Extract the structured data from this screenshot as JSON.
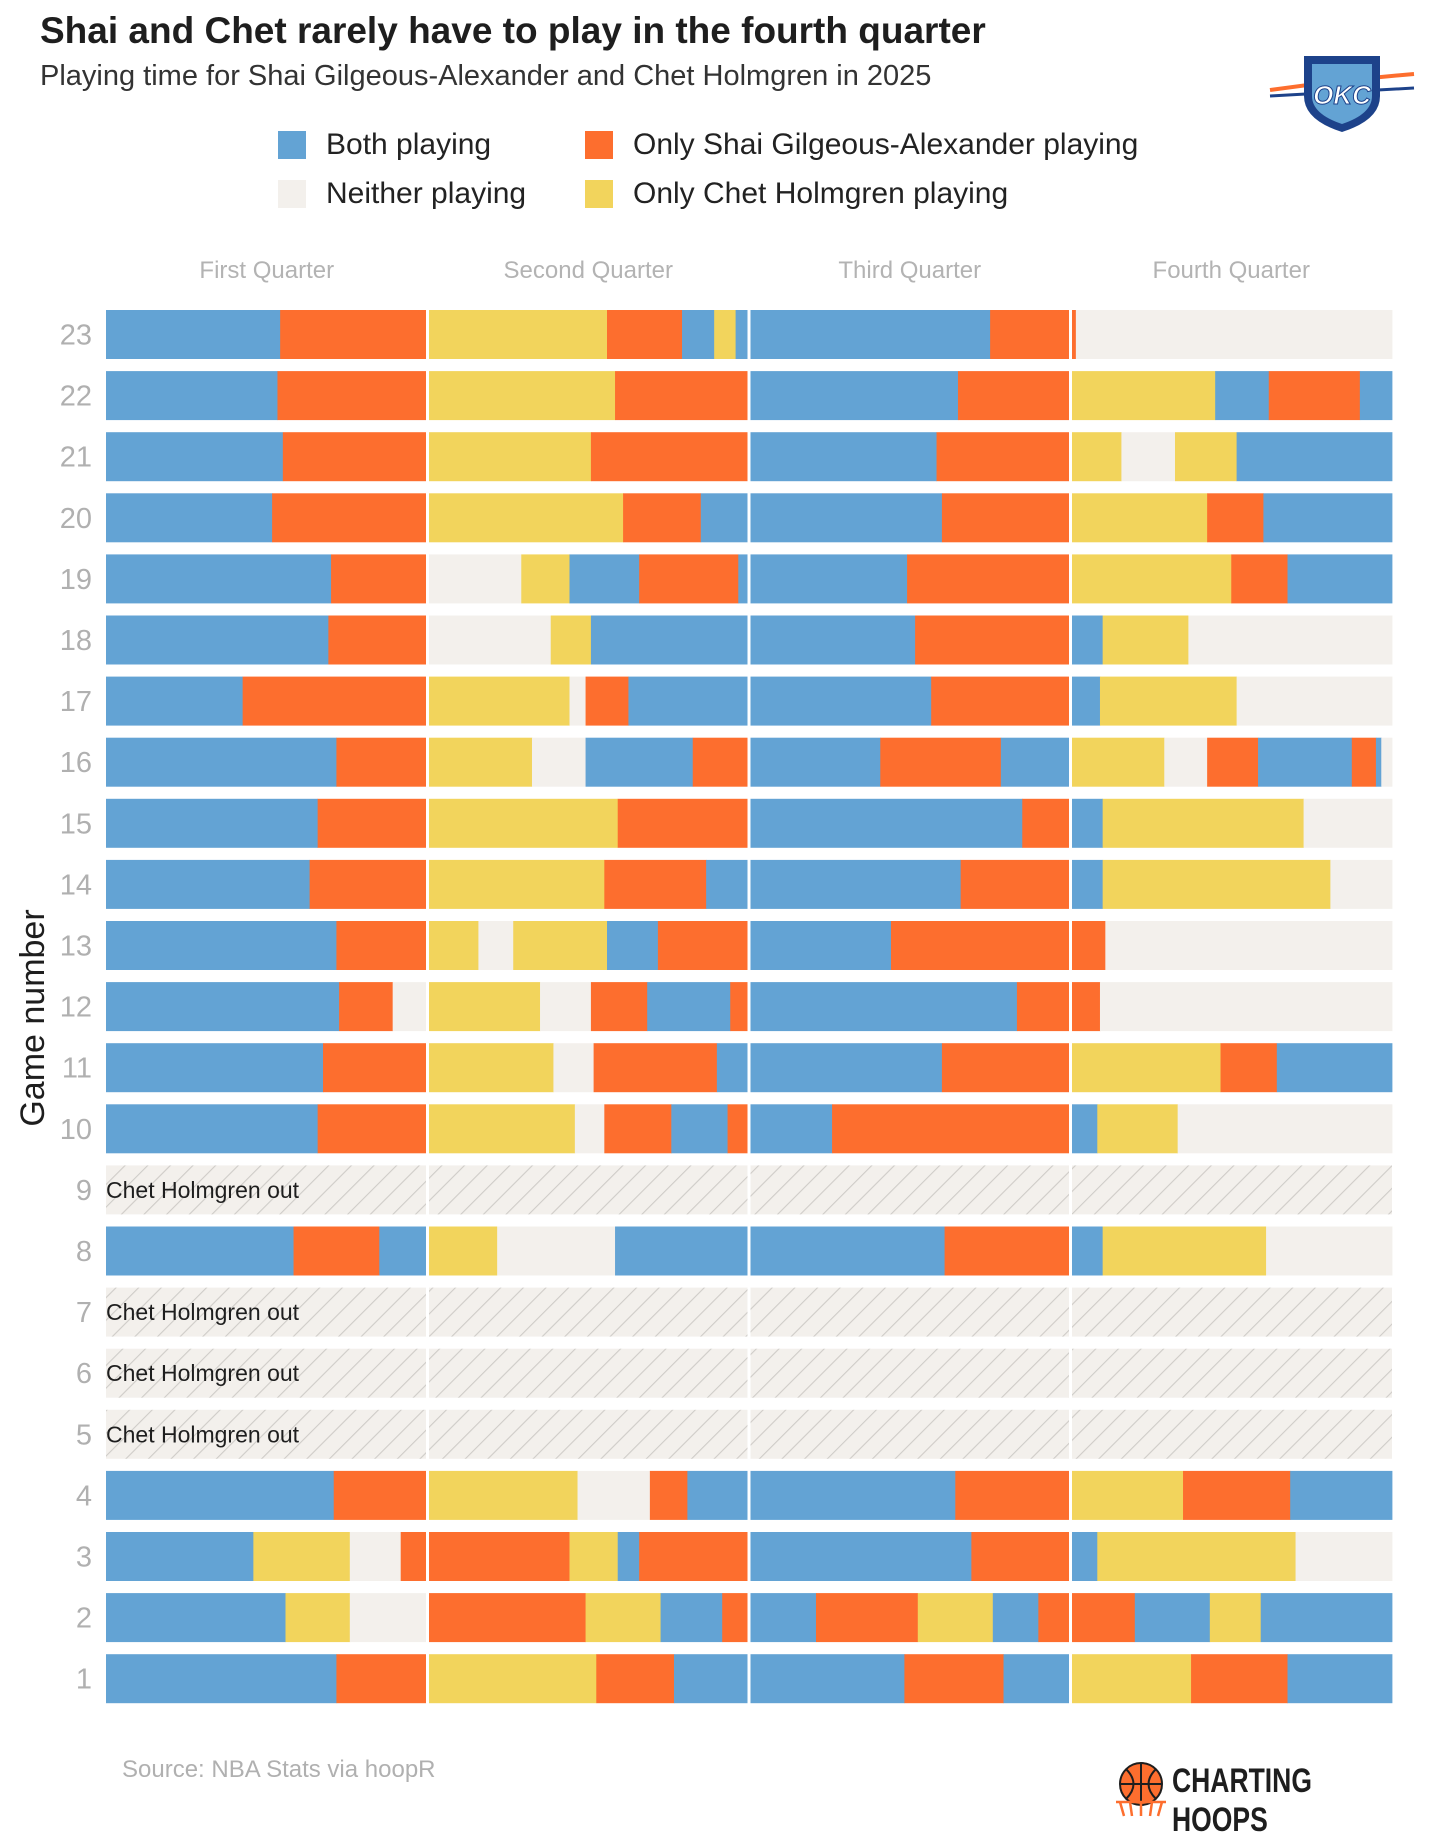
{
  "title": "Shai and Chet rarely have to play in the fourth quarter",
  "subtitle": "Playing time for Shai Gilgeous-Alexander and Chet Holmgren in 2025",
  "source": "Source: NBA Stats via hoopR",
  "brand": "CHARTING HOOPS",
  "logo_text": "OKC",
  "out_label": "Chet Holmgren out",
  "colors": {
    "both": "#63a3d4",
    "shai": "#fd6e2e",
    "chet": "#f2d45c",
    "neither": "#f3f0ec"
  },
  "legend": [
    {
      "key": "both",
      "label": "Both playing"
    },
    {
      "key": "shai",
      "label": "Only Shai Gilgeous-Alexander playing"
    },
    {
      "key": "neither",
      "label": "Neither playing"
    },
    {
      "key": "chet",
      "label": "Only Chet Holmgren playing"
    }
  ],
  "chart_data": {
    "type": "bar",
    "orientation": "horizontal-stacked-timeline",
    "ylabel": "Game number",
    "xlabel": "",
    "quarters": [
      "First Quarter",
      "Second Quarter",
      "Third Quarter",
      "Fourth Quarter"
    ],
    "x_unit": "minutes of game time",
    "xlim": [
      0,
      48
    ],
    "out_games": [
      5,
      6,
      7,
      9
    ],
    "games": [
      {
        "game": 23,
        "segments": [
          [
            "both",
            6.5
          ],
          [
            "shai",
            5.5
          ],
          [
            "chet",
            6.7
          ],
          [
            "shai",
            2.8
          ],
          [
            "both",
            1.2
          ],
          [
            "chet",
            0.8
          ],
          [
            "both",
            9.5
          ],
          [
            "shai",
            3.2
          ],
          [
            "neither",
            11.8
          ]
        ]
      },
      {
        "game": 22,
        "segments": [
          [
            "both",
            6.4
          ],
          [
            "shai",
            5.6
          ],
          [
            "chet",
            7.0
          ],
          [
            "shai",
            5.0
          ],
          [
            "both",
            7.8
          ],
          [
            "shai",
            4.2
          ],
          [
            "chet",
            5.4
          ],
          [
            "both",
            2.0
          ],
          [
            "shai",
            3.4
          ],
          [
            "both",
            1.2
          ]
        ]
      },
      {
        "game": 21,
        "segments": [
          [
            "both",
            6.6
          ],
          [
            "shai",
            5.4
          ],
          [
            "chet",
            6.1
          ],
          [
            "shai",
            5.9
          ],
          [
            "both",
            7.0
          ],
          [
            "shai",
            5.0
          ],
          [
            "chet",
            1.9
          ],
          [
            "neither",
            2.0
          ],
          [
            "chet",
            2.3
          ],
          [
            "both",
            5.8
          ]
        ]
      },
      {
        "game": 20,
        "segments": [
          [
            "both",
            6.2
          ],
          [
            "shai",
            5.8
          ],
          [
            "chet",
            7.3
          ],
          [
            "shai",
            2.9
          ],
          [
            "both",
            1.8
          ],
          [
            "both",
            7.2
          ],
          [
            "shai",
            4.8
          ],
          [
            "chet",
            5.1
          ],
          [
            "shai",
            2.1
          ],
          [
            "both",
            4.8
          ]
        ]
      },
      {
        "game": 19,
        "segments": [
          [
            "both",
            8.4
          ],
          [
            "shai",
            3.6
          ],
          [
            "neither",
            3.5
          ],
          [
            "chet",
            1.8
          ],
          [
            "both",
            2.6
          ],
          [
            "shai",
            3.7
          ],
          [
            "both",
            0.4
          ],
          [
            "both",
            5.9
          ],
          [
            "shai",
            6.1
          ],
          [
            "chet",
            6.0
          ],
          [
            "shai",
            2.1
          ],
          [
            "both",
            3.9
          ]
        ]
      },
      {
        "game": 18,
        "segments": [
          [
            "both",
            8.3
          ],
          [
            "shai",
            3.7
          ],
          [
            "neither",
            4.6
          ],
          [
            "chet",
            1.5
          ],
          [
            "both",
            5.9
          ],
          [
            "both",
            6.2
          ],
          [
            "shai",
            5.8
          ],
          [
            "both",
            1.2
          ],
          [
            "chet",
            3.2
          ],
          [
            "neither",
            7.6
          ]
        ]
      },
      {
        "game": 17,
        "segments": [
          [
            "both",
            5.1
          ],
          [
            "shai",
            6.9
          ],
          [
            "chet",
            5.3
          ],
          [
            "neither",
            0.6
          ],
          [
            "shai",
            1.6
          ],
          [
            "both",
            4.5
          ],
          [
            "both",
            6.8
          ],
          [
            "shai",
            5.2
          ],
          [
            "both",
            1.1
          ],
          [
            "chet",
            5.1
          ],
          [
            "neither",
            5.8
          ]
        ]
      },
      {
        "game": 16,
        "segments": [
          [
            "both",
            8.6
          ],
          [
            "shai",
            3.4
          ],
          [
            "chet",
            3.9
          ],
          [
            "neither",
            2.0
          ],
          [
            "both",
            4.0
          ],
          [
            "shai",
            2.1
          ],
          [
            "both",
            4.9
          ],
          [
            "shai",
            4.5
          ],
          [
            "both",
            2.6
          ],
          [
            "chet",
            3.5
          ],
          [
            "neither",
            1.6
          ],
          [
            "shai",
            1.9
          ],
          [
            "both",
            3.5
          ],
          [
            "shai",
            0.9
          ],
          [
            "both",
            0.2
          ],
          [
            "neither",
            0.4
          ]
        ]
      },
      {
        "game": 15,
        "segments": [
          [
            "both",
            7.9
          ],
          [
            "shai",
            4.1
          ],
          [
            "chet",
            7.1
          ],
          [
            "shai",
            4.9
          ],
          [
            "both",
            10.2
          ],
          [
            "shai",
            1.8
          ],
          [
            "both",
            1.2
          ],
          [
            "chet",
            7.5
          ],
          [
            "neither",
            3.3
          ]
        ]
      },
      {
        "game": 14,
        "segments": [
          [
            "both",
            7.6
          ],
          [
            "shai",
            4.4
          ],
          [
            "chet",
            6.6
          ],
          [
            "shai",
            3.8
          ],
          [
            "both",
            1.6
          ],
          [
            "both",
            7.9
          ],
          [
            "shai",
            4.1
          ],
          [
            "both",
            1.2
          ],
          [
            "chet",
            8.5
          ],
          [
            "neither",
            2.3
          ]
        ]
      },
      {
        "game": 13,
        "segments": [
          [
            "both",
            8.6
          ],
          [
            "shai",
            3.4
          ],
          [
            "chet",
            1.9
          ],
          [
            "neither",
            1.3
          ],
          [
            "chet",
            3.5
          ],
          [
            "both",
            1.9
          ],
          [
            "shai",
            3.4
          ],
          [
            "both",
            5.3
          ],
          [
            "shai",
            6.7
          ],
          [
            "shai",
            1.3
          ],
          [
            "neither",
            10.7
          ]
        ]
      },
      {
        "game": 12,
        "segments": [
          [
            "both",
            8.7
          ],
          [
            "shai",
            2.0
          ],
          [
            "neither",
            1.3
          ],
          [
            "chet",
            4.2
          ],
          [
            "neither",
            1.9
          ],
          [
            "shai",
            2.1
          ],
          [
            "both",
            3.1
          ],
          [
            "shai",
            0.7
          ],
          [
            "both",
            10.0
          ],
          [
            "shai",
            2.0
          ],
          [
            "shai",
            1.1
          ],
          [
            "neither",
            10.9
          ]
        ]
      },
      {
        "game": 11,
        "segments": [
          [
            "both",
            8.1
          ],
          [
            "shai",
            3.9
          ],
          [
            "chet",
            4.7
          ],
          [
            "neither",
            1.5
          ],
          [
            "shai",
            4.6
          ],
          [
            "both",
            1.2
          ],
          [
            "both",
            7.2
          ],
          [
            "shai",
            4.8
          ],
          [
            "chet",
            5.6
          ],
          [
            "shai",
            2.1
          ],
          [
            "both",
            4.3
          ]
        ]
      },
      {
        "game": 10,
        "segments": [
          [
            "both",
            7.9
          ],
          [
            "shai",
            4.1
          ],
          [
            "chet",
            5.5
          ],
          [
            "neither",
            1.1
          ],
          [
            "shai",
            2.5
          ],
          [
            "both",
            2.1
          ],
          [
            "shai",
            0.8
          ],
          [
            "both",
            3.1
          ],
          [
            "shai",
            8.9
          ],
          [
            "both",
            1.0
          ],
          [
            "chet",
            3.0
          ],
          [
            "neither",
            8.0
          ]
        ]
      },
      {
        "game": 9,
        "out": true,
        "segments": []
      },
      {
        "game": 8,
        "segments": [
          [
            "both",
            7.0
          ],
          [
            "shai",
            3.2
          ],
          [
            "both",
            1.8
          ],
          [
            "chet",
            2.6
          ],
          [
            "neither",
            4.4
          ],
          [
            "both",
            5.0
          ],
          [
            "both",
            7.3
          ],
          [
            "shai",
            4.7
          ],
          [
            "both",
            1.2
          ],
          [
            "chet",
            6.1
          ],
          [
            "neither",
            4.7
          ]
        ]
      },
      {
        "game": 7,
        "out": true,
        "segments": []
      },
      {
        "game": 6,
        "out": true,
        "segments": []
      },
      {
        "game": 5,
        "out": true,
        "segments": []
      },
      {
        "game": 4,
        "segments": [
          [
            "both",
            8.5
          ],
          [
            "shai",
            3.5
          ],
          [
            "chet",
            5.6
          ],
          [
            "neither",
            2.7
          ],
          [
            "shai",
            1.4
          ],
          [
            "both",
            2.3
          ],
          [
            "both",
            7.7
          ],
          [
            "shai",
            4.3
          ],
          [
            "chet",
            4.2
          ],
          [
            "shai",
            4.0
          ],
          [
            "both",
            3.8
          ]
        ]
      },
      {
        "game": 3,
        "segments": [
          [
            "both",
            5.5
          ],
          [
            "chet",
            3.6
          ],
          [
            "neither",
            1.9
          ],
          [
            "shai",
            1.0
          ],
          [
            "shai",
            5.3
          ],
          [
            "chet",
            1.8
          ],
          [
            "both",
            0.8
          ],
          [
            "shai",
            4.1
          ],
          [
            "both",
            8.3
          ],
          [
            "shai",
            3.7
          ],
          [
            "both",
            1.0
          ],
          [
            "chet",
            7.4
          ],
          [
            "neither",
            3.6
          ]
        ]
      },
      {
        "game": 2,
        "segments": [
          [
            "both",
            6.7
          ],
          [
            "chet",
            2.4
          ],
          [
            "neither",
            2.9
          ],
          [
            "shai",
            5.9
          ],
          [
            "chet",
            2.8
          ],
          [
            "both",
            2.3
          ],
          [
            "shai",
            1.0
          ],
          [
            "both",
            2.5
          ],
          [
            "shai",
            3.8
          ],
          [
            "chet",
            2.8
          ],
          [
            "both",
            1.7
          ],
          [
            "shai",
            1.2
          ],
          [
            "shai",
            2.4
          ],
          [
            "both",
            2.8
          ],
          [
            "chet",
            1.9
          ],
          [
            "both",
            4.9
          ]
        ]
      },
      {
        "game": 1,
        "segments": [
          [
            "both",
            8.6
          ],
          [
            "shai",
            3.4
          ],
          [
            "chet",
            6.3
          ],
          [
            "shai",
            2.9
          ],
          [
            "both",
            2.8
          ],
          [
            "both",
            5.8
          ],
          [
            "shai",
            3.7
          ],
          [
            "both",
            2.5
          ],
          [
            "chet",
            4.5
          ],
          [
            "shai",
            3.6
          ],
          [
            "both",
            3.9
          ]
        ]
      }
    ]
  }
}
